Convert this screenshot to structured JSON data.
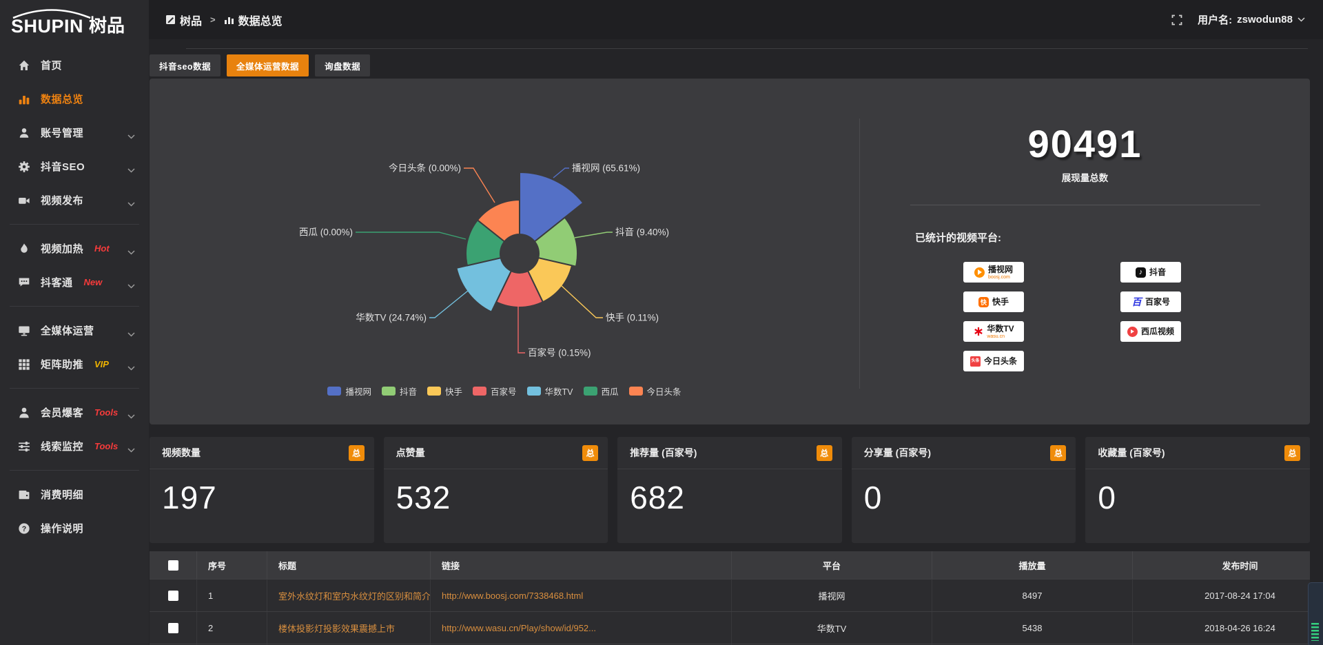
{
  "header": {
    "logo_main": "SHUPIN",
    "logo_cn": "树品",
    "breadcrumb": [
      "树品",
      "数据总览"
    ],
    "breadcrumb_sep": ">",
    "user_label": "用户名:",
    "username": "zswodun88"
  },
  "sidebar": {
    "items": [
      {
        "label": "首页",
        "icon": "home",
        "active": false,
        "chevron": false,
        "tag": "",
        "divider_after": false
      },
      {
        "label": "数据总览",
        "icon": "bar-chart",
        "active": true,
        "chevron": false,
        "tag": "",
        "divider_after": false
      },
      {
        "label": "账号管理",
        "icon": "user",
        "active": false,
        "chevron": true,
        "tag": "",
        "divider_after": false
      },
      {
        "label": "抖音SEO",
        "icon": "gear",
        "active": false,
        "chevron": true,
        "tag": "",
        "divider_after": false
      },
      {
        "label": "视频发布",
        "icon": "video",
        "active": false,
        "chevron": true,
        "tag": "",
        "divider_after": true
      },
      {
        "label": "视频加热",
        "icon": "heat",
        "active": false,
        "chevron": true,
        "tag": "Hot",
        "tag_color": "#f73b3b",
        "divider_after": false
      },
      {
        "label": "抖客通",
        "icon": "chat",
        "active": false,
        "chevron": true,
        "tag": "New",
        "tag_color": "#f73b3b",
        "divider_after": true
      },
      {
        "label": "全媒体运营",
        "icon": "monitor",
        "active": false,
        "chevron": true,
        "tag": "",
        "divider_after": false
      },
      {
        "label": "矩阵助推",
        "icon": "grid",
        "active": false,
        "chevron": true,
        "tag": "VIP",
        "tag_color": "#f0b400",
        "divider_after": true
      },
      {
        "label": "会员爆客",
        "icon": "person",
        "active": false,
        "chevron": true,
        "tag": "Tools",
        "tag_color": "#f73b3b",
        "divider_after": false
      },
      {
        "label": "线索监控",
        "icon": "sliders",
        "active": false,
        "chevron": true,
        "tag": "Tools",
        "tag_color": "#f73b3b",
        "divider_after": true
      },
      {
        "label": "消费明细",
        "icon": "wallet",
        "active": false,
        "chevron": false,
        "tag": "",
        "divider_after": false
      },
      {
        "label": "操作说明",
        "icon": "help",
        "active": false,
        "chevron": false,
        "tag": "",
        "divider_after": false
      }
    ]
  },
  "tabs": [
    {
      "label": "抖音seo数据",
      "active": false
    },
    {
      "label": "全媒体运营数据",
      "active": true
    },
    {
      "label": "询盘数据",
      "active": false
    }
  ],
  "chart_data": {
    "type": "pie",
    "variant": "nightingale-rose",
    "unit": "percent",
    "label_format": "{name} ({value}%)",
    "legend_position": "bottom",
    "items": [
      {
        "name": "播视网",
        "value": 65.61
      },
      {
        "name": "抖音",
        "value": 9.4
      },
      {
        "name": "快手",
        "value": 0.11
      },
      {
        "name": "百家号",
        "value": 0.15
      },
      {
        "name": "华数TV",
        "value": 24.74
      },
      {
        "name": "西瓜",
        "value": 0.0
      },
      {
        "name": "今日头条",
        "value": 0.0
      }
    ],
    "colors": [
      "#5470c6",
      "#91cc75",
      "#fac858",
      "#ee6666",
      "#73c0de",
      "#3ba272",
      "#fc8452"
    ]
  },
  "summary": {
    "total": "90491",
    "total_label": "展现量总数",
    "platforms_title": "已统计的视频平台:",
    "platform_columns": [
      [
        {
          "name": "播视网",
          "sub": "boosj.com",
          "icon": "boosj"
        },
        {
          "name": "快手",
          "sub": "",
          "icon": "kuaishou"
        },
        {
          "name": "华数TV",
          "sub": "wasu.cn",
          "icon": "wasu"
        },
        {
          "name": "今日头条",
          "sub": "",
          "icon": "toutiao"
        }
      ],
      [
        {
          "name": "抖音",
          "sub": "",
          "icon": "douyin"
        },
        {
          "name": "百家号",
          "sub": "",
          "icon": "baijia"
        },
        {
          "name": "西瓜视频",
          "sub": "",
          "icon": "xigua"
        }
      ]
    ]
  },
  "stat_cards": [
    {
      "title": "视频数量",
      "badge": "总",
      "value": "197"
    },
    {
      "title": "点赞量",
      "badge": "总",
      "value": "532"
    },
    {
      "title": "推荐量 (百家号)",
      "badge": "总",
      "value": "682"
    },
    {
      "title": "分享量 (百家号)",
      "badge": "总",
      "value": "0"
    },
    {
      "title": "收藏量 (百家号)",
      "badge": "总",
      "value": "0"
    }
  ],
  "table": {
    "columns": [
      "序号",
      "标题",
      "链接",
      "平台",
      "播放量",
      "发布时间"
    ],
    "rows": [
      {
        "idx": "1",
        "title": "室外水纹灯和室内水纹灯的区别和简介",
        "link": "http://www.boosj.com/7338468.html",
        "platform": "播视网",
        "plays": "8497",
        "time": "2017-08-24 17:04"
      },
      {
        "idx": "2",
        "title": "楼体投影灯投影效果震撼上市",
        "link": "http://www.wasu.cn/Play/show/id/952...",
        "platform": "华数TV",
        "plays": "5438",
        "time": "2018-04-26 16:24"
      },
      {
        "idx": "",
        "title": "",
        "link": "",
        "platform": "",
        "plays": "",
        "time": ""
      }
    ]
  }
}
